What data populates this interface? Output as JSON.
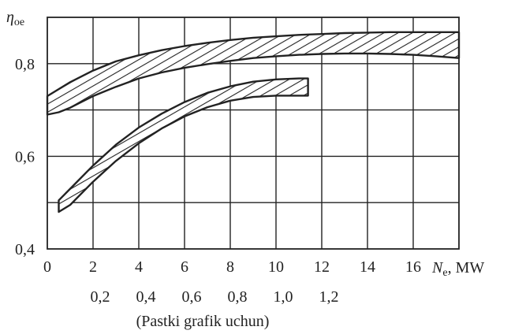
{
  "chart_data": {
    "type": "area",
    "y_label": {
      "symbol": "η",
      "subscript": "oe"
    },
    "x_label": {
      "symbol": "N",
      "subscript": "e",
      "unit": "MW"
    },
    "x_ticks": [
      "0",
      "2",
      "4",
      "6",
      "8",
      "10",
      "12",
      "14",
      "16"
    ],
    "x_ticks_secondary": [
      "0,2",
      "0,4",
      "0,6",
      "0,8",
      "1,0",
      "1,2"
    ],
    "x_ticks_secondary_positions": [
      2,
      4,
      6,
      8,
      10,
      12
    ],
    "secondary_caption": "(Pastki grafik uchun)",
    "y_ticks": [
      "0,4",
      "0,6",
      "0,8"
    ],
    "y_tick_values": [
      0.4,
      0.6,
      0.8
    ],
    "xlim": [
      0,
      18
    ],
    "ylim": [
      0.4,
      0.9
    ],
    "grid": true,
    "series": [
      {
        "x": [
          0.0,
          0.5,
          1,
          2,
          3,
          4,
          5,
          6,
          7,
          8,
          9,
          10,
          11,
          12,
          13,
          14,
          15,
          16,
          17,
          18
        ],
        "upper": [
          0.73,
          0.745,
          0.76,
          0.785,
          0.805,
          0.818,
          0.829,
          0.838,
          0.845,
          0.851,
          0.856,
          0.859,
          0.862,
          0.864,
          0.866,
          0.867,
          0.868,
          0.868,
          0.868,
          0.868
        ],
        "lower": [
          0.69,
          0.695,
          0.705,
          0.73,
          0.75,
          0.768,
          0.781,
          0.791,
          0.799,
          0.806,
          0.812,
          0.816,
          0.819,
          0.821,
          0.822,
          0.822,
          0.821,
          0.819,
          0.816,
          0.812
        ]
      },
      {
        "x": [
          0.5,
          1,
          2,
          3,
          4,
          5,
          6,
          7,
          8,
          9,
          10,
          11,
          11.4
        ],
        "upper": [
          0.505,
          0.53,
          0.58,
          0.625,
          0.662,
          0.692,
          0.717,
          0.737,
          0.751,
          0.761,
          0.766,
          0.768,
          0.768
        ],
        "lower": [
          0.48,
          0.495,
          0.545,
          0.59,
          0.628,
          0.66,
          0.686,
          0.706,
          0.72,
          0.728,
          0.731,
          0.731,
          0.731
        ]
      }
    ]
  }
}
